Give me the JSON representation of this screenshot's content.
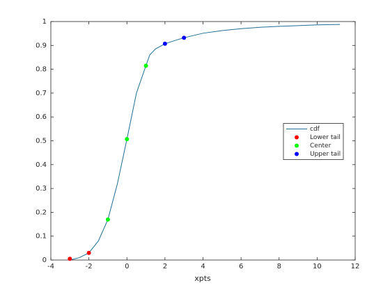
{
  "chart_data": {
    "type": "line",
    "xlabel": "xpts",
    "xlim": [
      -4,
      12
    ],
    "xticks": [
      -4,
      -2,
      0,
      2,
      4,
      6,
      8,
      10,
      12
    ],
    "ylim": [
      0,
      1
    ],
    "yticks": [
      0,
      0.1,
      0.2,
      0.3,
      0.4,
      0.5,
      0.6,
      0.7,
      0.8,
      0.9,
      1
    ],
    "legend": "east",
    "series": [
      {
        "name": "cdf",
        "kind": "line",
        "color": "#1f6f94",
        "x": [
          -3,
          -2.5,
          -2,
          -1.5,
          -1,
          -0.5,
          0,
          0.5,
          1,
          1.2,
          1.5,
          2,
          2.5,
          3,
          4,
          5,
          6,
          7,
          8,
          9,
          10,
          11.2
        ],
        "values": [
          0,
          0.01,
          0.03,
          0.08,
          0.17,
          0.32,
          0.507,
          0.7,
          0.815,
          0.86,
          0.885,
          0.907,
          0.92,
          0.932,
          0.951,
          0.962,
          0.97,
          0.976,
          0.98,
          0.983,
          0.986,
          0.988
        ]
      },
      {
        "name": "Lower tail",
        "kind": "scatter",
        "color": "#ff0000",
        "x": [
          -3,
          -2
        ],
        "values": [
          0.005,
          0.03
        ]
      },
      {
        "name": "Center",
        "kind": "scatter",
        "color": "#00ff00",
        "x": [
          -1,
          0,
          1
        ],
        "values": [
          0.17,
          0.507,
          0.815
        ]
      },
      {
        "name": "Upper tail",
        "kind": "scatter",
        "color": "#0000ff",
        "x": [
          2,
          3
        ],
        "values": [
          0.907,
          0.932
        ]
      }
    ]
  }
}
